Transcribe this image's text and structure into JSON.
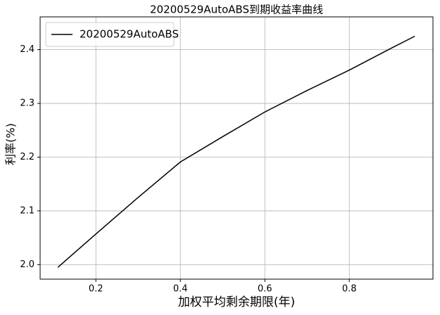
{
  "chart_data": {
    "type": "line",
    "title": "20200529AutoABS到期收益率曲线",
    "x_label": "加权平均剩余期限(年)",
    "y_label": "利率(%)",
    "x": [
      0.11,
      0.2,
      0.3,
      0.4,
      0.5,
      0.6,
      0.7,
      0.8,
      0.9,
      0.955
    ],
    "series": [
      {
        "name": "20200529AutoABS",
        "color": "#000000",
        "values": [
          1.995,
          2.057,
          2.125,
          2.191,
          2.238,
          2.284,
          2.324,
          2.362,
          2.403,
          2.425
        ]
      }
    ],
    "xlim": [
      0.068,
      0.998
    ],
    "ylim": [
      1.973,
      2.461
    ],
    "xticks": [
      0.2,
      0.4,
      0.6,
      0.8
    ],
    "yticks": [
      {
        "value": 2,
        "label": "2.0"
      },
      2.1,
      2.2,
      2.3,
      2.4
    ],
    "grid": true,
    "legend": "upper-left"
  }
}
